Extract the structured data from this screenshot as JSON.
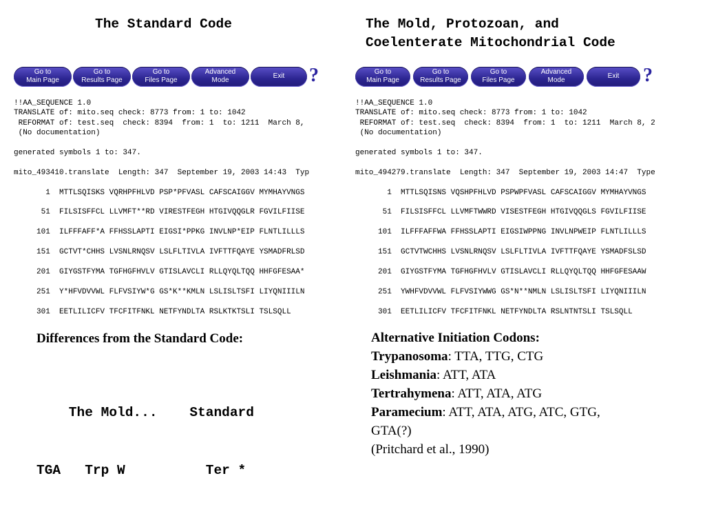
{
  "left": {
    "title": "The Standard Code",
    "nav": [
      {
        "label": "Go to\nMain Page"
      },
      {
        "label": "Go to\nResults Page"
      },
      {
        "label": "Go to\nFiles Page"
      },
      {
        "label": "Advanced\nMode"
      },
      {
        "label": "Exit"
      }
    ],
    "help": "?",
    "sequence": "!!AA_SEQUENCE 1.0\nTRANSLATE of: mito.seq check: 8773 from: 1 to: 1042\n REFORMAT of: test.seq  check: 8394  from: 1  to: 1211  March 8,\n (No documentation)\n\ngenerated symbols 1 to: 347.\n\nmito_493410.translate  Length: 347  September 19, 2003 14:43  Typ\n\n       1  MTTLSQISKS VQRHPFHLVD PSP*PFVASL CAFSCAIGGV MYMHAYVNGS\n\n      51  FILSISFFCL LLVMFT**RD VIRESTFEGH HTGIVQQGLR FGVILFIISE\n\n     101  ILFFFAFF*A FFHSSLAPTI EIGSI*PPKG INVLNP*EIP FLNTLILLLS\n\n     151  GCTVT*CHHS LVSNLRNQSV LSLFLTIVLA IVFTTFQAYE YSMADFRLSD\n\n     201  GIYGSTFYMA TGFHGFHVLV GTISLAVCLI RLLQYQLTQQ HHFGFESAA*\n\n     251  Y*HFVDVVWL FLFVSIYW*G GS*K**KMLN LSLISLTSFI LIYQNIIILN\n\n     301  EETLILICFV TFCFITFNKL NETFYNDLTA RSLKTKTSLI TSLSQLL"
  },
  "right": {
    "title": "The Mold, Protozoan, and\nCoelenterate Mitochondrial Code",
    "nav": [
      {
        "label": "Go to\nMain Page"
      },
      {
        "label": "Go to\nResults Page"
      },
      {
        "label": "Go to\nFiles Page"
      },
      {
        "label": "Advanced\nMode"
      },
      {
        "label": "Exit"
      }
    ],
    "help": "?",
    "sequence": "!!AA_SEQUENCE 1.0\nTRANSLATE of: mito.seq check: 8773 from: 1 to: 1042\n REFORMAT of: test.seq  check: 8394  from: 1  to: 1211  March 8, 2\n (No documentation)\n\ngenerated symbols 1 to: 347.\n\nmito_494279.translate  Length: 347  September 19, 2003 14:47  Type\n\n       1  MTTLSQISNS VQSHPFHLVD PSPWPFVASL CAFSCAIGGV MYMHAYVNGS\n\n      51  FILSISFFCL LLVMFTWWRD VISESTFEGH HTGIVQQGLS FGVILFIISE\n\n     101  ILFFFAFFWA FFHSSLAPTI EIGSIWPPNG INVLNPWEIP FLNTLILLLS\n\n     151  GCTVTWCHHS LVSNLRNQSV LSLFLTIVLA IVFTTFQAYE YSMADFSLSD\n\n     201  GIYGSTFYMA TGFHGFHVLV GTISLAVCLI RLLQYQLTQQ HHFGFESAAW\n\n     251  YWHFVDVVWL FLFVSIYWWG GS*N**NMLN LSLISLTSFI LIYQNIIILN\n\n     301  EETLILICFV TFCFITFNKL NETFYNDLTA RSLNTNTSLI TSLSQLL"
  },
  "differences": {
    "heading": "Differences from the Standard Code:",
    "header_row": "    The Mold...    Standard",
    "data_row": "TGA   Trp W          Ter *"
  },
  "alt_initiation": {
    "heading": "Alternative Initiation Codons:",
    "entries": [
      {
        "organism": "Trypanosoma",
        "codons": ": TTA, TTG, CTG"
      },
      {
        "organism": "Leishmania",
        "codons": ": ATT, ATA"
      },
      {
        "organism": "Tertrahymena",
        "codons": ": ATT, ATA, ATG"
      },
      {
        "organism": "Paramecium",
        "codons": ": ATT, ATA, ATG, ATC, GTG,"
      }
    ],
    "continuation": "GTA(?)",
    "citation": "(Pritchard et al., 1990)"
  },
  "colors": {
    "button": "#2c2591",
    "button_text": "#ffffff",
    "help": "#2b24a0"
  },
  "icons": {
    "help": "question-mark-icon"
  }
}
